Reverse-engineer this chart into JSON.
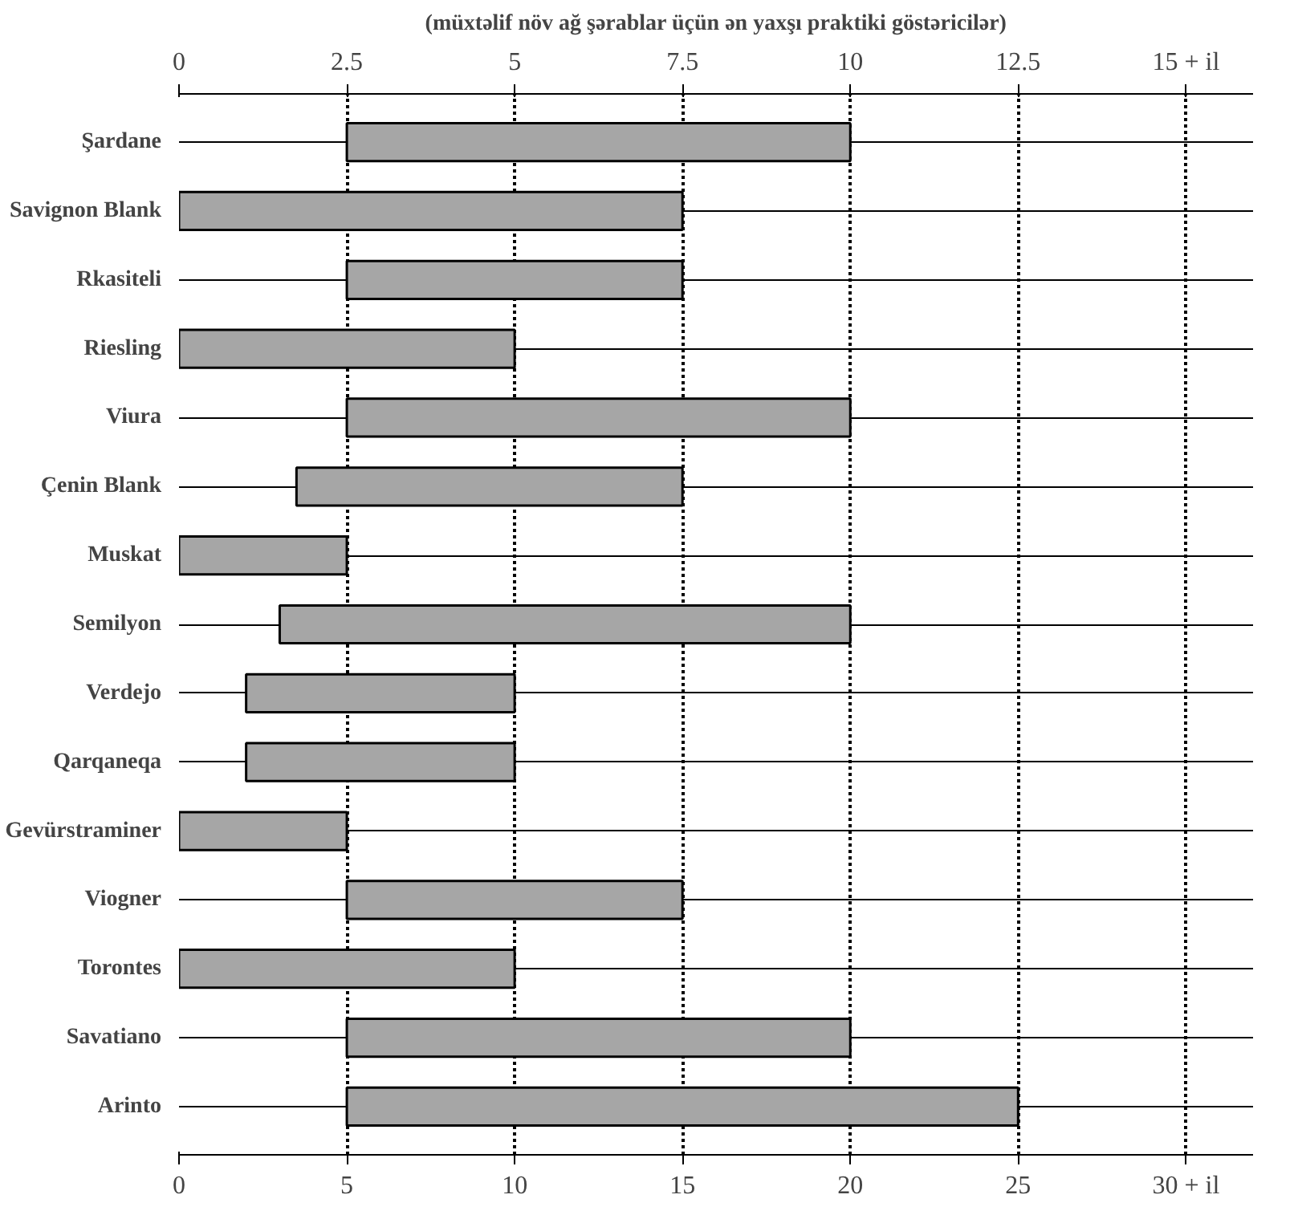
{
  "chart_data": {
    "type": "bar",
    "orientation": "horizontal",
    "title": "(müxtəlif növ ağ şərablar üçün ən yaxşı praktiki göstəricilər)",
    "categories": [
      "Şardane",
      "Savignon Blank",
      "Rkasiteli",
      "Riesling",
      "Viura",
      "Çenin Blank",
      "Muskat",
      "Semilyon",
      "Verdejo",
      "Qarqaneqa",
      "Gevürstraminer",
      "Viogner",
      "Torontes",
      "Savatiano",
      "Arinto"
    ],
    "base": [
      5,
      0,
      5,
      0,
      5,
      3.5,
      0,
      3,
      2,
      2,
      0,
      5,
      0,
      5,
      5
    ],
    "values": [
      15,
      15,
      10,
      10,
      15,
      11.5,
      5,
      17,
      8,
      8,
      5,
      10,
      10,
      15,
      20
    ],
    "color": "#a6a6a6",
    "xlim": [
      0,
      32
    ],
    "xticks": [
      0,
      5,
      10,
      15,
      20,
      25,
      {
        "value": 30,
        "label": "30 + il"
      }
    ],
    "x2lim": [
      0,
      16
    ],
    "x2ticks": [
      0,
      2.5,
      5,
      7.5,
      10,
      12.5,
      {
        "value": 15,
        "label": "15 + il"
      }
    ],
    "grid": true
  }
}
